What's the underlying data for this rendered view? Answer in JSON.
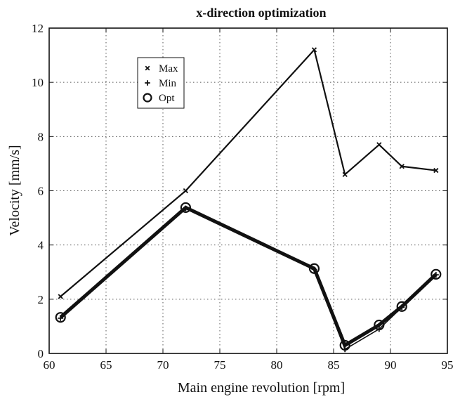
{
  "chart_data": {
    "type": "line",
    "title": "x-direction optimization",
    "xlabel": "Main engine revolution [rpm]",
    "ylabel": "Velocity [mm/s]",
    "xlim": [
      60,
      95
    ],
    "ylim": [
      0,
      12
    ],
    "xticks": [
      60,
      65,
      70,
      75,
      80,
      85,
      90,
      95
    ],
    "yticks": [
      0,
      2,
      4,
      6,
      8,
      10,
      12
    ],
    "grid": true,
    "legend_position": "top-left",
    "x": [
      61,
      72,
      83.3,
      86,
      89,
      91,
      94
    ],
    "series": [
      {
        "name": "Max",
        "marker": "x",
        "values": [
          2.1,
          6.0,
          11.2,
          6.6,
          7.7,
          6.9,
          6.75
        ]
      },
      {
        "name": "Min",
        "marker": "+",
        "values": [
          1.3,
          5.35,
          3.1,
          0.15,
          0.9,
          1.7,
          2.9
        ]
      },
      {
        "name": "Opt",
        "marker": "o",
        "values": [
          1.33,
          5.38,
          3.13,
          0.3,
          1.05,
          1.73,
          2.92
        ]
      }
    ]
  }
}
